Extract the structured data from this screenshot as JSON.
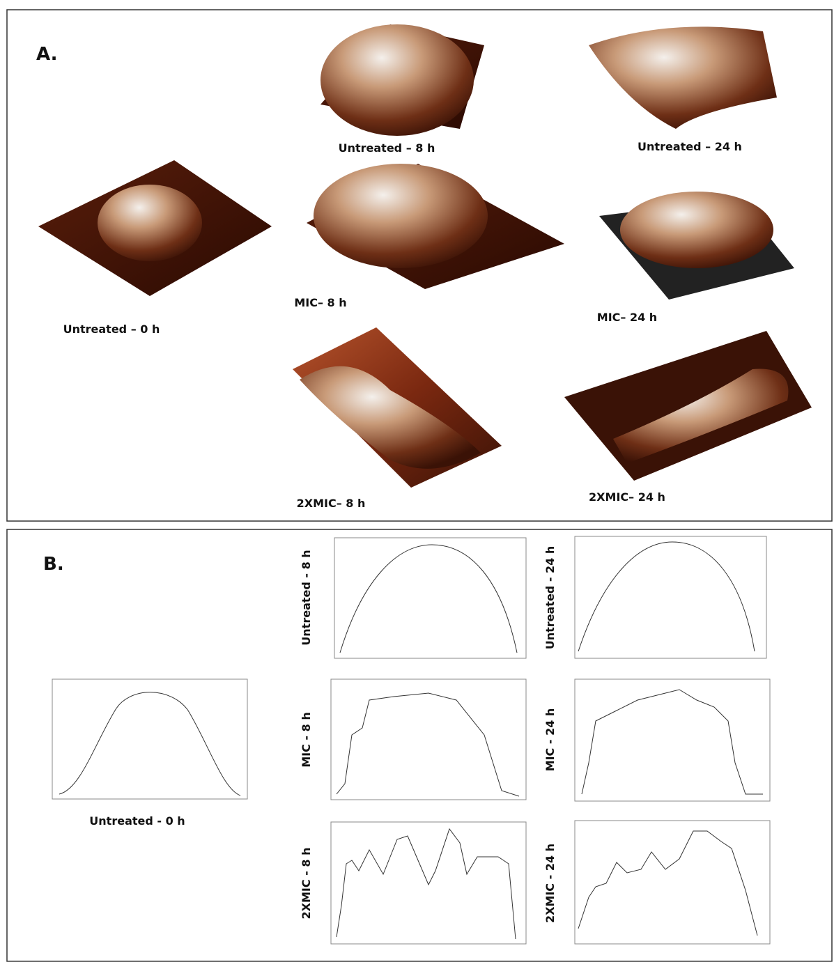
{
  "panel_a": {
    "label": "A.",
    "images": [
      {
        "caption": "Untreated – 0 h"
      },
      {
        "caption": "Untreated – 8 h"
      },
      {
        "caption": "Untreated – 24 h"
      },
      {
        "caption": "MIC– 8 h"
      },
      {
        "caption": "MIC– 24 h"
      },
      {
        "caption": "2XMIC– 8 h"
      },
      {
        "caption": "2XMIC– 24 h"
      }
    ]
  },
  "panel_b": {
    "label": "B.",
    "profiles": [
      {
        "label": "Untreated - 0 h"
      },
      {
        "label": "Untreated - 8 h"
      },
      {
        "label": "Untreated - 24 h"
      },
      {
        "label": "MIC - 8 h"
      },
      {
        "label": "MIC - 24 h"
      },
      {
        "label": "2XMIC - 8 h"
      },
      {
        "label": "2XMIC - 24 h"
      }
    ]
  }
}
